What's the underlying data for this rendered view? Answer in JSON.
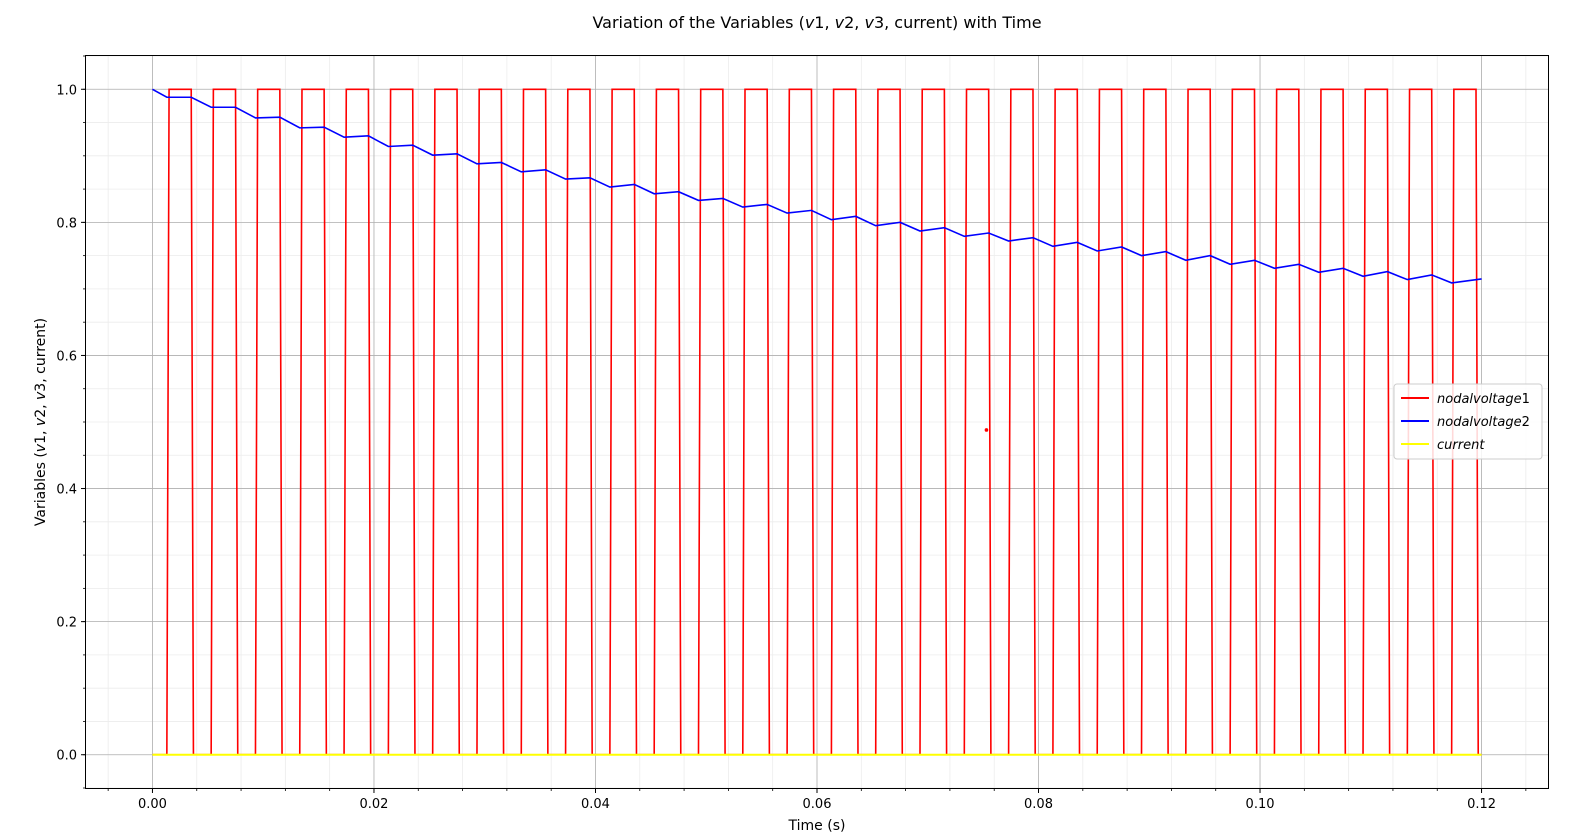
{
  "chart_data": {
    "type": "line",
    "title_parts": [
      "Variation of the Variables (",
      "v",
      "1, ",
      "v",
      "2, ",
      "v",
      "3, current) with Time"
    ],
    "xlabel": "Time (s)",
    "ylabel_parts": [
      "Variables (",
      "v",
      "1, ",
      "v",
      "2, ",
      "v",
      "3, current)"
    ],
    "xlim": [
      -0.006,
      0.126
    ],
    "ylim": [
      -0.05,
      1.05
    ],
    "x_ticks": [
      "0.00",
      "0.02",
      "0.04",
      "0.06",
      "0.08",
      "0.10",
      "0.12"
    ],
    "x_tick_values": [
      0,
      0.02,
      0.04,
      0.06,
      0.08,
      0.1,
      0.12
    ],
    "y_ticks": [
      "0.0",
      "0.2",
      "0.4",
      "0.6",
      "0.8",
      "1.0"
    ],
    "y_tick_values": [
      0,
      0.2,
      0.4,
      0.6,
      0.8,
      1.0
    ],
    "grid": true,
    "minor_grid": true,
    "legend_position": "center-right",
    "series": [
      {
        "name": "nodalvoltage1",
        "color": "#ff0000",
        "pulse_period": 0.004,
        "pulse_on": [
          [
            0.0015,
            0.0035
          ],
          [
            0.0055,
            0.0075
          ],
          [
            0.0095,
            0.0115
          ],
          [
            0.0135,
            0.0155
          ],
          [
            0.0175,
            0.0195
          ],
          [
            0.0215,
            0.0235
          ],
          [
            0.0255,
            0.0275
          ],
          [
            0.0295,
            0.0315
          ],
          [
            0.0335,
            0.0355
          ],
          [
            0.0375,
            0.0395
          ],
          [
            0.0415,
            0.0435
          ],
          [
            0.0455,
            0.0475
          ],
          [
            0.0495,
            0.0515
          ],
          [
            0.0535,
            0.0555
          ],
          [
            0.0575,
            0.0595
          ],
          [
            0.0615,
            0.0635
          ],
          [
            0.0655,
            0.0675
          ],
          [
            0.0695,
            0.0715
          ],
          [
            0.0735,
            0.0755
          ],
          [
            0.0775,
            0.0795
          ],
          [
            0.0815,
            0.0835
          ],
          [
            0.0855,
            0.0875
          ],
          [
            0.0895,
            0.0915
          ],
          [
            0.0935,
            0.0955
          ],
          [
            0.0975,
            0.0995
          ],
          [
            0.1015,
            0.1035
          ],
          [
            0.1055,
            0.1075
          ],
          [
            0.1095,
            0.1115
          ],
          [
            0.1135,
            0.1155
          ],
          [
            0.1175,
            0.1195
          ]
        ],
        "high": 1.0,
        "low": 0.0
      },
      {
        "name": "nodalvoltage2",
        "color": "#0000ff",
        "x": [
          0.0,
          0.0013,
          0.0035,
          0.0053,
          0.0075,
          0.0093,
          0.0115,
          0.0133,
          0.0155,
          0.0173,
          0.0195,
          0.0213,
          0.0235,
          0.0253,
          0.0275,
          0.0293,
          0.0315,
          0.0333,
          0.0355,
          0.0373,
          0.0395,
          0.0413,
          0.0435,
          0.0453,
          0.0475,
          0.0493,
          0.0515,
          0.0533,
          0.0555,
          0.0573,
          0.0595,
          0.0613,
          0.0635,
          0.0653,
          0.0675,
          0.0693,
          0.0715,
          0.0733,
          0.0755,
          0.0773,
          0.0795,
          0.0813,
          0.0835,
          0.0853,
          0.0875,
          0.0893,
          0.0915,
          0.0933,
          0.0955,
          0.0973,
          0.0995,
          0.1013,
          0.1035,
          0.1053,
          0.1075,
          0.1093,
          0.1115,
          0.1133,
          0.1155,
          0.1173,
          0.12
        ],
        "y": [
          1.0,
          0.988,
          0.988,
          0.973,
          0.973,
          0.957,
          0.958,
          0.942,
          0.943,
          0.928,
          0.93,
          0.914,
          0.916,
          0.901,
          0.903,
          0.888,
          0.89,
          0.876,
          0.879,
          0.865,
          0.867,
          0.853,
          0.857,
          0.843,
          0.846,
          0.833,
          0.836,
          0.823,
          0.827,
          0.814,
          0.818,
          0.804,
          0.809,
          0.795,
          0.8,
          0.787,
          0.792,
          0.779,
          0.784,
          0.772,
          0.777,
          0.764,
          0.77,
          0.757,
          0.763,
          0.75,
          0.756,
          0.743,
          0.75,
          0.737,
          0.743,
          0.731,
          0.737,
          0.725,
          0.731,
          0.719,
          0.726,
          0.714,
          0.721,
          0.709,
          0.715
        ]
      },
      {
        "name": "current",
        "color": "#ffff00",
        "x": [
          0.0,
          0.12
        ],
        "y": [
          0.0,
          0.0
        ]
      }
    ],
    "annotations": [
      {
        "type": "point",
        "x": 0.0753,
        "y": 0.488,
        "color": "#ff0000"
      }
    ]
  }
}
